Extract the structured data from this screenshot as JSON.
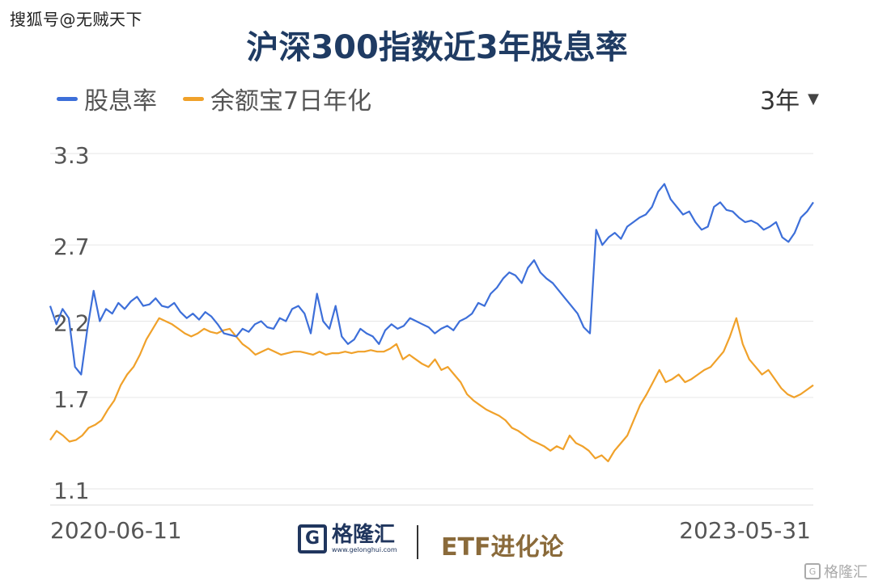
{
  "watermark_top": "搜狐号@无贼天下",
  "range_selector": "3年",
  "footer": {
    "brand_name": "格隆汇",
    "brand_url": "www.gelonghui.com",
    "partner": "ETF进化论",
    "corner_mark": "格隆汇"
  },
  "colors": {
    "dividend": "#3d6fd9",
    "yuebao": "#f0a12a",
    "title": "#1f3b63"
  },
  "chart_data": {
    "type": "line",
    "title": "沪深300指数近3年股息率",
    "x_start_label": "2020-06-11",
    "x_end_label": "2023-05-31",
    "yticks": [
      "3.3",
      "2.7",
      "2.2",
      "1.7",
      "1.1"
    ],
    "ylim": [
      1.1,
      3.3
    ],
    "grid": true,
    "legend_position": "top-left",
    "series": [
      {
        "name": "股息率",
        "values": [
          2.3,
          2.18,
          2.28,
          2.22,
          1.9,
          1.85,
          2.15,
          2.4,
          2.2,
          2.28,
          2.25,
          2.32,
          2.28,
          2.33,
          2.36,
          2.3,
          2.31,
          2.35,
          2.3,
          2.29,
          2.32,
          2.26,
          2.22,
          2.25,
          2.21,
          2.26,
          2.23,
          2.18,
          2.12,
          2.11,
          2.1,
          2.15,
          2.13,
          2.18,
          2.2,
          2.16,
          2.15,
          2.22,
          2.2,
          2.28,
          2.3,
          2.25,
          2.12,
          2.38,
          2.2,
          2.15,
          2.3,
          2.1,
          2.05,
          2.08,
          2.15,
          2.12,
          2.1,
          2.05,
          2.14,
          2.18,
          2.15,
          2.17,
          2.22,
          2.2,
          2.18,
          2.16,
          2.12,
          2.15,
          2.17,
          2.14,
          2.2,
          2.22,
          2.25,
          2.32,
          2.3,
          2.38,
          2.42,
          2.48,
          2.52,
          2.5,
          2.45,
          2.55,
          2.6,
          2.52,
          2.48,
          2.45,
          2.4,
          2.35,
          2.3,
          2.25,
          2.16,
          2.12,
          2.8,
          2.7,
          2.75,
          2.78,
          2.74,
          2.82,
          2.85,
          2.88,
          2.9,
          2.95,
          3.05,
          3.1,
          3.0,
          2.95,
          2.9,
          2.92,
          2.85,
          2.8,
          2.82,
          2.95,
          2.98,
          2.93,
          2.92,
          2.88,
          2.85,
          2.86,
          2.84,
          2.8,
          2.82,
          2.85,
          2.75,
          2.72,
          2.78,
          2.88,
          2.92,
          2.98
        ],
        "color": "#3d6fd9"
      },
      {
        "name": "余额宝7日年化",
        "values": [
          1.42,
          1.48,
          1.45,
          1.41,
          1.42,
          1.45,
          1.5,
          1.52,
          1.55,
          1.62,
          1.68,
          1.78,
          1.85,
          1.9,
          1.98,
          2.08,
          2.15,
          2.22,
          2.2,
          2.18,
          2.15,
          2.12,
          2.1,
          2.12,
          2.15,
          2.13,
          2.12,
          2.14,
          2.15,
          2.1,
          2.05,
          2.02,
          1.98,
          2.0,
          2.02,
          2.0,
          1.98,
          1.99,
          2.0,
          2.0,
          1.99,
          1.98,
          2.0,
          1.98,
          1.99,
          1.99,
          2.0,
          1.99,
          2.0,
          2.0,
          2.01,
          2.0,
          2.0,
          2.02,
          2.05,
          1.95,
          1.98,
          1.95,
          1.92,
          1.9,
          1.95,
          1.88,
          1.9,
          1.85,
          1.8,
          1.72,
          1.68,
          1.65,
          1.62,
          1.6,
          1.58,
          1.55,
          1.5,
          1.48,
          1.45,
          1.42,
          1.4,
          1.38,
          1.35,
          1.38,
          1.36,
          1.45,
          1.4,
          1.38,
          1.35,
          1.3,
          1.32,
          1.28,
          1.35,
          1.4,
          1.45,
          1.55,
          1.65,
          1.72,
          1.8,
          1.88,
          1.8,
          1.82,
          1.85,
          1.8,
          1.82,
          1.85,
          1.88,
          1.9,
          1.95,
          2.0,
          2.1,
          2.22,
          2.05,
          1.95,
          1.9,
          1.85,
          1.88,
          1.82,
          1.76,
          1.72,
          1.7,
          1.72,
          1.75,
          1.78
        ],
        "color": "#f0a12a"
      }
    ]
  }
}
